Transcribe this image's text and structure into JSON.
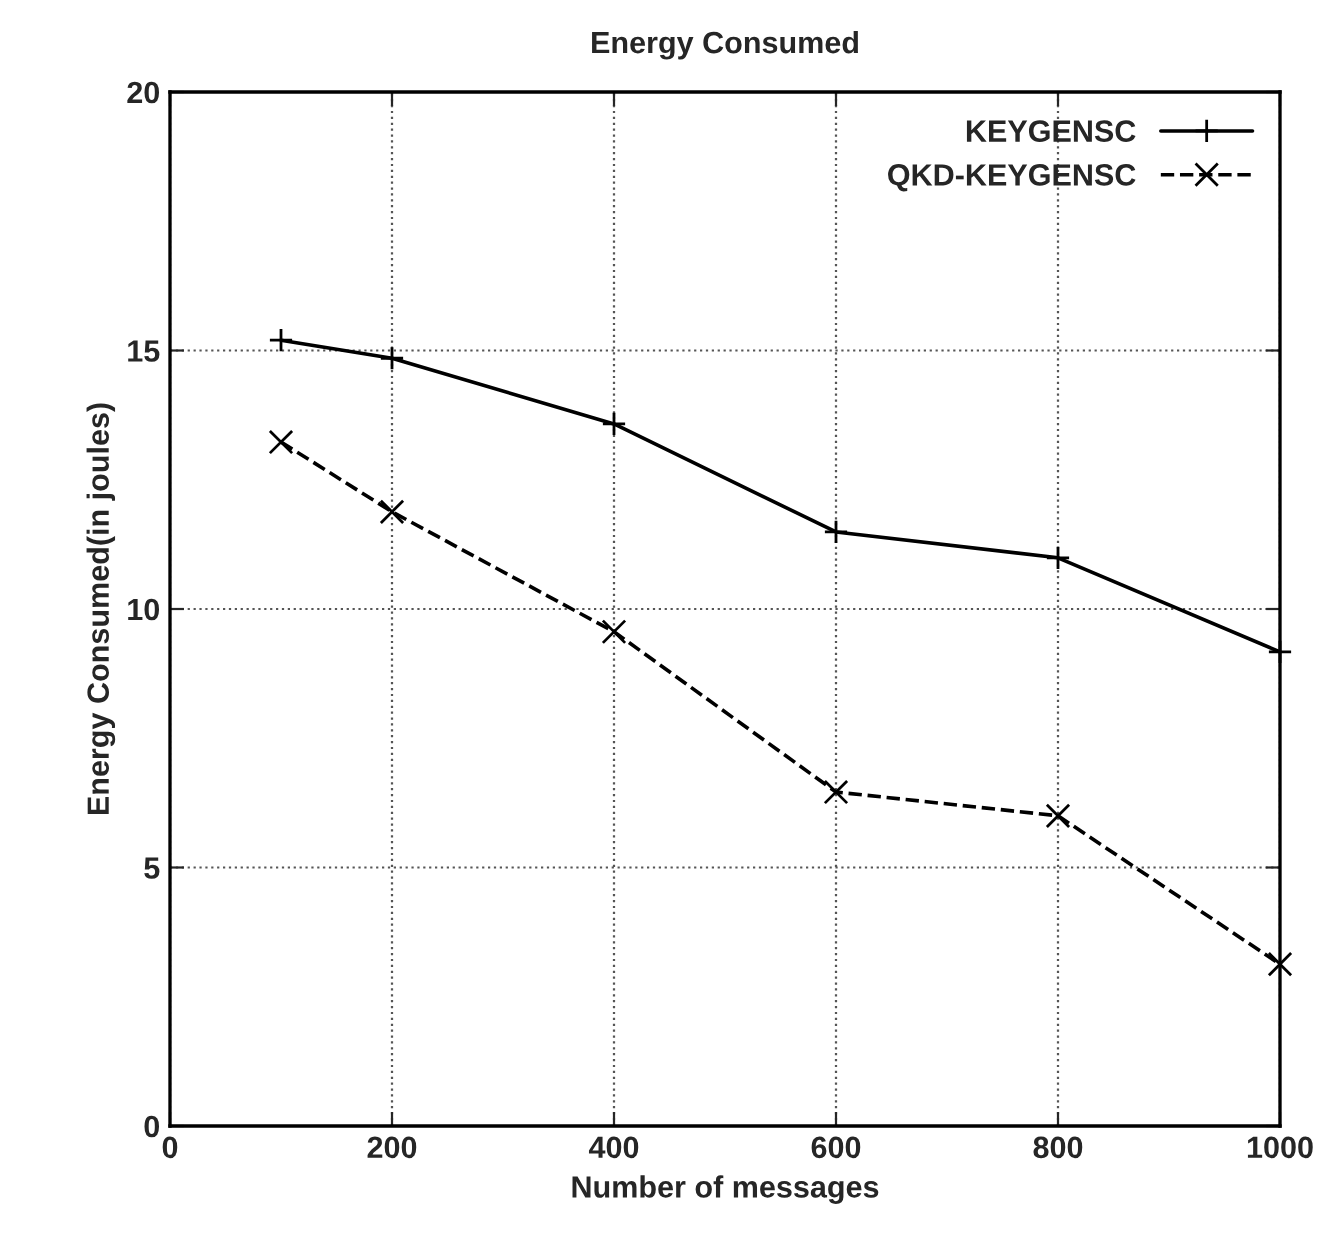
{
  "chart_data": {
    "type": "line",
    "title": "Energy Consumed",
    "xlabel": "Number of messages",
    "ylabel": "Energy Consumed(in joules)",
    "x": [
      100,
      200,
      400,
      600,
      800,
      1000
    ],
    "series": [
      {
        "name": "KEYGENSC",
        "color": "#000000",
        "values": [
          15.2,
          14.85,
          13.58,
          11.49,
          10.99,
          9.17
        ],
        "marker": "plus",
        "line_style": "solid"
      },
      {
        "name": "QKD-KEYGENSC",
        "color": "#000000",
        "values": [
          13.23,
          11.88,
          9.56,
          6.46,
          6.0,
          3.13
        ],
        "marker": "cross",
        "line_style": "dashed"
      }
    ],
    "xlim": [
      0,
      1000
    ],
    "xticks": [
      0,
      200,
      400,
      600,
      800,
      1000
    ],
    "ylim": [
      0,
      20
    ],
    "yticks": [
      0,
      5,
      10,
      15,
      20
    ],
    "grid": true,
    "legend": "top right"
  }
}
